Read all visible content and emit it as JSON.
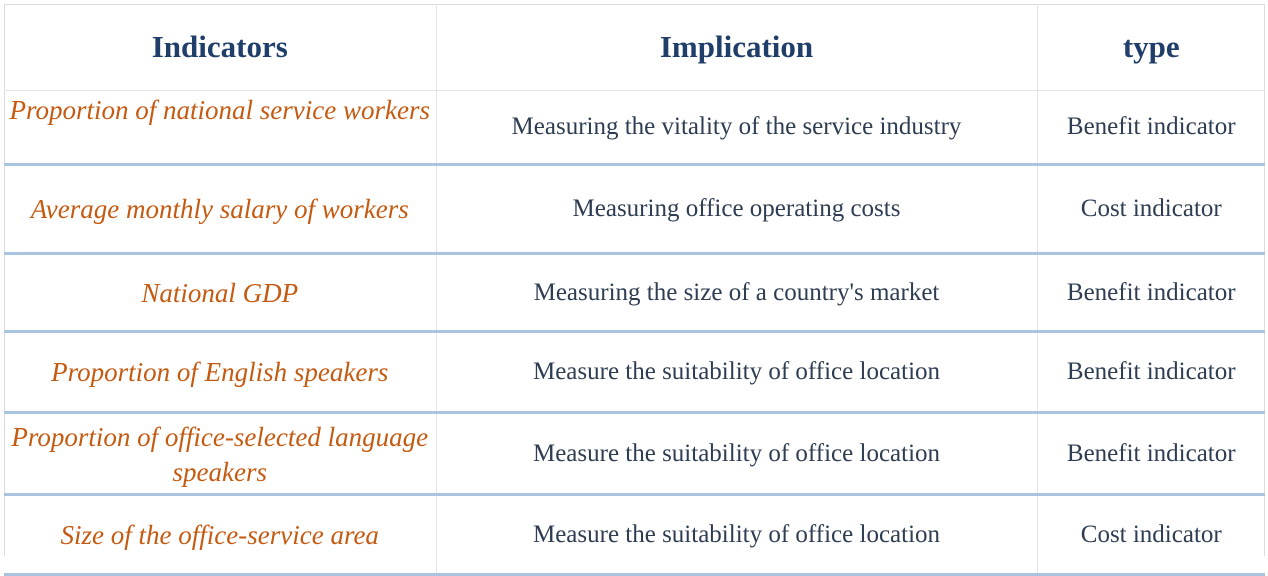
{
  "table": {
    "headers": [
      "Indicators",
      "Implication",
      "type"
    ],
    "rows": [
      [
        "Proportion of national service workers",
        "Measuring the vitality of the service industry",
        "Benefit indicator"
      ],
      [
        "Average monthly salary of workers",
        "Measuring office operating costs",
        "Cost indicator"
      ],
      [
        "National GDP",
        "Measuring the size of a country's market",
        "Benefit indicator"
      ],
      [
        "Proportion of English speakers",
        "Measure the suitability of office location",
        "Benefit indicator"
      ],
      [
        "Proportion of office-selected language speakers",
        "Measure the suitability of office location",
        "Benefit indicator"
      ],
      [
        "Size of the office-service area",
        "Measure the suitability of office location",
        "Cost indicator"
      ]
    ]
  },
  "colors": {
    "header_text": "#1f3f6a",
    "indicator_text": "#c55a11",
    "body_text": "#2e3d52",
    "row_divider": "#a9c4df"
  }
}
